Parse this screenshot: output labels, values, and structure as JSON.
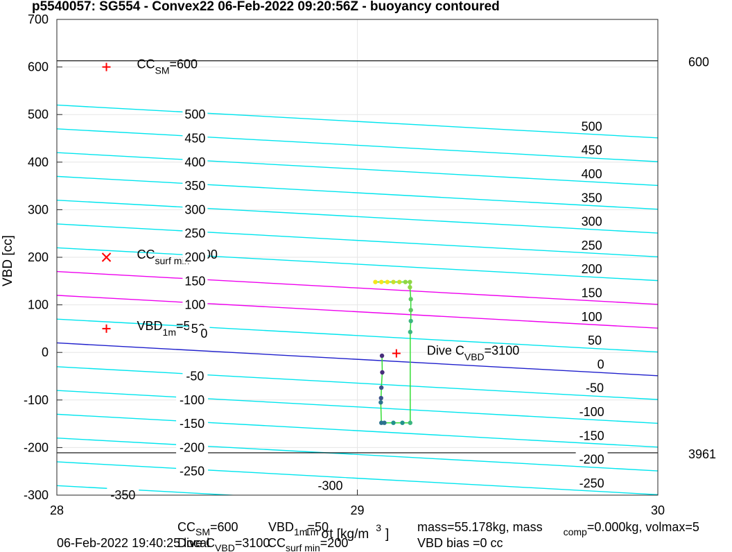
{
  "title": "p5540057: SG554 - Convex22 06-Feb-2022 09:20:56Z - buoyancy contoured",
  "chart_data": {
    "type": "scatter",
    "xlabel": "σ",
    "xlabel_sub": "1m",
    "xlabel_unit": "t [kg/m",
    "xlabel_sup": "3",
    "xlabel_tail": "]",
    "ylabel": "VBD [cc]",
    "xlim": [
      28,
      30
    ],
    "ylim": [
      -300,
      700
    ],
    "xticks": [
      28,
      29,
      30
    ],
    "yticks": [
      -300,
      -200,
      -100,
      0,
      100,
      200,
      300,
      400,
      500,
      600,
      700
    ],
    "grid": true,
    "contour_slope_per_unit_x": -34.5,
    "contour_intercept_at_x28": 20,
    "contours": [
      {
        "value": -350,
        "color": "#00e5ee"
      },
      {
        "value": -300,
        "color": "#00e5ee"
      },
      {
        "value": -250,
        "color": "#00e5ee"
      },
      {
        "value": -200,
        "color": "#00e5ee"
      },
      {
        "value": -150,
        "color": "#00e5ee"
      },
      {
        "value": -100,
        "color": "#00e5ee"
      },
      {
        "value": -50,
        "color": "#00e5ee"
      },
      {
        "value": 0,
        "color": "#1f1fcc"
      },
      {
        "value": 50,
        "color": "#00e5ee"
      },
      {
        "value": 100,
        "color": "#ee00ee"
      },
      {
        "value": 150,
        "color": "#ee00ee"
      },
      {
        "value": 200,
        "color": "#00e5ee"
      },
      {
        "value": 250,
        "color": "#00e5ee"
      },
      {
        "value": 300,
        "color": "#00e5ee"
      },
      {
        "value": 350,
        "color": "#00e5ee"
      },
      {
        "value": 400,
        "color": "#00e5ee"
      },
      {
        "value": 450,
        "color": "#00e5ee"
      },
      {
        "value": 500,
        "color": "#00e5ee"
      }
    ],
    "left_contour_labels": [
      {
        "text": "500",
        "x": 28.46,
        "y": 500
      },
      {
        "text": "450",
        "x": 28.46,
        "y": 450
      },
      {
        "text": "400",
        "x": 28.46,
        "y": 400
      },
      {
        "text": "350",
        "x": 28.46,
        "y": 350
      },
      {
        "text": "300",
        "x": 28.46,
        "y": 300
      },
      {
        "text": "250",
        "x": 28.46,
        "y": 250
      },
      {
        "text": "200",
        "x": 28.46,
        "y": 200
      },
      {
        "text": "150",
        "x": 28.46,
        "y": 150
      },
      {
        "text": "100",
        "x": 28.46,
        "y": 100
      },
      {
        "text": "50",
        "x": 28.47,
        "y": 50
      },
      {
        "text": "0",
        "x": 28.49,
        "y": 40
      },
      {
        "text": "-50",
        "x": 28.46,
        "y": -50
      },
      {
        "text": "-100",
        "x": 28.45,
        "y": -100
      },
      {
        "text": "-150",
        "x": 28.45,
        "y": -150
      },
      {
        "text": "-200",
        "x": 28.45,
        "y": -200
      },
      {
        "text": "-250",
        "x": 28.45,
        "y": -250
      },
      {
        "text": "-300",
        "x": 28.91,
        "y": -280
      },
      {
        "text": "-350",
        "x": 28.22,
        "y": -300
      }
    ],
    "right_contour_labels": [
      {
        "text": "500",
        "x": 29.78,
        "y": 475
      },
      {
        "text": "450",
        "x": 29.78,
        "y": 425
      },
      {
        "text": "400",
        "x": 29.78,
        "y": 375
      },
      {
        "text": "350",
        "x": 29.78,
        "y": 325
      },
      {
        "text": "300",
        "x": 29.78,
        "y": 275
      },
      {
        "text": "250",
        "x": 29.78,
        "y": 225
      },
      {
        "text": "200",
        "x": 29.78,
        "y": 175
      },
      {
        "text": "150",
        "x": 29.78,
        "y": 125
      },
      {
        "text": "100",
        "x": 29.78,
        "y": 75
      },
      {
        "text": "50",
        "x": 29.79,
        "y": 25
      },
      {
        "text": "0",
        "x": 29.81,
        "y": -25
      },
      {
        "text": "-50",
        "x": 29.79,
        "y": -75
      },
      {
        "text": "-100",
        "x": 29.78,
        "y": -125
      },
      {
        "text": "-150",
        "x": 29.78,
        "y": -175
      },
      {
        "text": "-200",
        "x": 29.78,
        "y": -225
      },
      {
        "text": "-250",
        "x": 29.78,
        "y": -275
      }
    ],
    "horizontal_lines": [
      {
        "y": 613,
        "label": "600"
      },
      {
        "y": -211,
        "label": "3961"
      }
    ],
    "markers": [
      {
        "x": 28.165,
        "y": 600,
        "symbol": "+",
        "label": "CC",
        "label_sub": "SM",
        "label_tail": "=600"
      },
      {
        "x": 28.165,
        "y": 200,
        "symbol": "x",
        "label": "CC",
        "label_sub": "surf min",
        "label_tail": "=200"
      },
      {
        "x": 28.165,
        "y": 50,
        "symbol": "+",
        "label": "VBD",
        "label_sub": "1m",
        "label_tail": "=50"
      },
      {
        "x": 29.13,
        "y": -2,
        "symbol": "+",
        "label": "Dive C",
        "label_sub": "VBD",
        "label_tail": "=3100"
      }
    ],
    "trajectory": [
      {
        "x": 29.06,
        "y": 148
      },
      {
        "x": 29.08,
        "y": 148
      },
      {
        "x": 29.1,
        "y": 148
      },
      {
        "x": 29.12,
        "y": 148
      },
      {
        "x": 29.14,
        "y": 148
      },
      {
        "x": 29.16,
        "y": 148
      },
      {
        "x": 29.175,
        "y": 148
      },
      {
        "x": 29.175,
        "y": 137
      },
      {
        "x": 29.178,
        "y": 112
      },
      {
        "x": 29.178,
        "y": 89
      },
      {
        "x": 29.178,
        "y": 66
      },
      {
        "x": 29.176,
        "y": 43
      },
      {
        "x": 29.176,
        "y": -148
      },
      {
        "x": 29.15,
        "y": -148
      },
      {
        "x": 29.12,
        "y": -148
      },
      {
        "x": 29.09,
        "y": -148
      },
      {
        "x": 29.08,
        "y": -148
      },
      {
        "x": 29.078,
        "y": -105
      },
      {
        "x": 29.079,
        "y": -96
      },
      {
        "x": 29.08,
        "y": -74
      },
      {
        "x": 29.083,
        "y": -42
      },
      {
        "x": 29.082,
        "y": -7
      }
    ]
  },
  "footer": {
    "date": "06-Feb-2022 19:40:25 local",
    "cc_sm": "CC",
    "cc_sm_sub": "SM",
    "cc_sm_tail": "=600",
    "vbd1m": "VBD",
    "vbd1m_sub": "1m",
    "vbd1m_tail": "=50",
    "dive_c": "Dive C",
    "dive_c_sub": "VBD",
    "dive_c_tail": "=3100",
    "cc_surf": "CC",
    "cc_surf_sub": "surf min",
    "cc_surf_tail": "=200",
    "mass": "mass=55.178kg, mass",
    "mass_sub": "comp",
    "mass_tail": "=0.000kg, volmax=5",
    "vbd_bias": "VBD bias =0 cc"
  }
}
